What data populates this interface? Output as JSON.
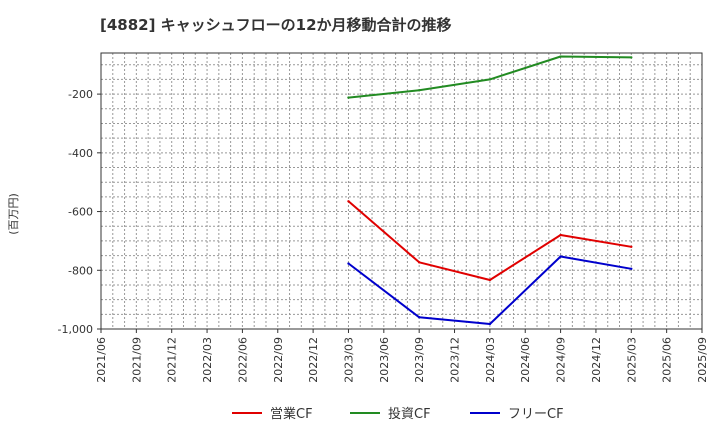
{
  "chart_data": {
    "type": "line",
    "title": "[4882]  キャッシュフローの12か月移動合計の推移",
    "ylabel": "(百万円)",
    "xlabel": "",
    "x": [
      "2021/06",
      "2021/09",
      "2021/12",
      "2022/03",
      "2022/06",
      "2022/09",
      "2022/12",
      "2023/03",
      "2023/06",
      "2023/09",
      "2023/12",
      "2024/03",
      "2024/06",
      "2024/09",
      "2024/12",
      "2025/03",
      "2025/06",
      "2025/09"
    ],
    "ylim": [
      -1000,
      -60
    ],
    "yticks": [
      -200,
      -400,
      -600,
      -800,
      -1000
    ],
    "ytick_labels": [
      "-200",
      "-400",
      "-600",
      "-800",
      "-1,000"
    ],
    "grid": true,
    "legend_position": "bottom",
    "series": [
      {
        "name": "営業CF",
        "color": "#e00000",
        "points": [
          {
            "x": "2023/03",
            "y": -565
          },
          {
            "x": "2023/09",
            "y": -773
          },
          {
            "x": "2024/03",
            "y": -833
          },
          {
            "x": "2024/09",
            "y": -680
          },
          {
            "x": "2025/03",
            "y": -720
          }
        ]
      },
      {
        "name": "投資CF",
        "color": "#228b22",
        "points": [
          {
            "x": "2023/03",
            "y": -212
          },
          {
            "x": "2023/09",
            "y": -187
          },
          {
            "x": "2024/03",
            "y": -150
          },
          {
            "x": "2024/09",
            "y": -72
          },
          {
            "x": "2025/03",
            "y": -75
          }
        ]
      },
      {
        "name": "フリーCF",
        "color": "#0000cc",
        "points": [
          {
            "x": "2023/03",
            "y": -777
          },
          {
            "x": "2023/09",
            "y": -960
          },
          {
            "x": "2024/03",
            "y": -983
          },
          {
            "x": "2024/09",
            "y": -753
          },
          {
            "x": "2025/03",
            "y": -795
          }
        ]
      }
    ]
  }
}
